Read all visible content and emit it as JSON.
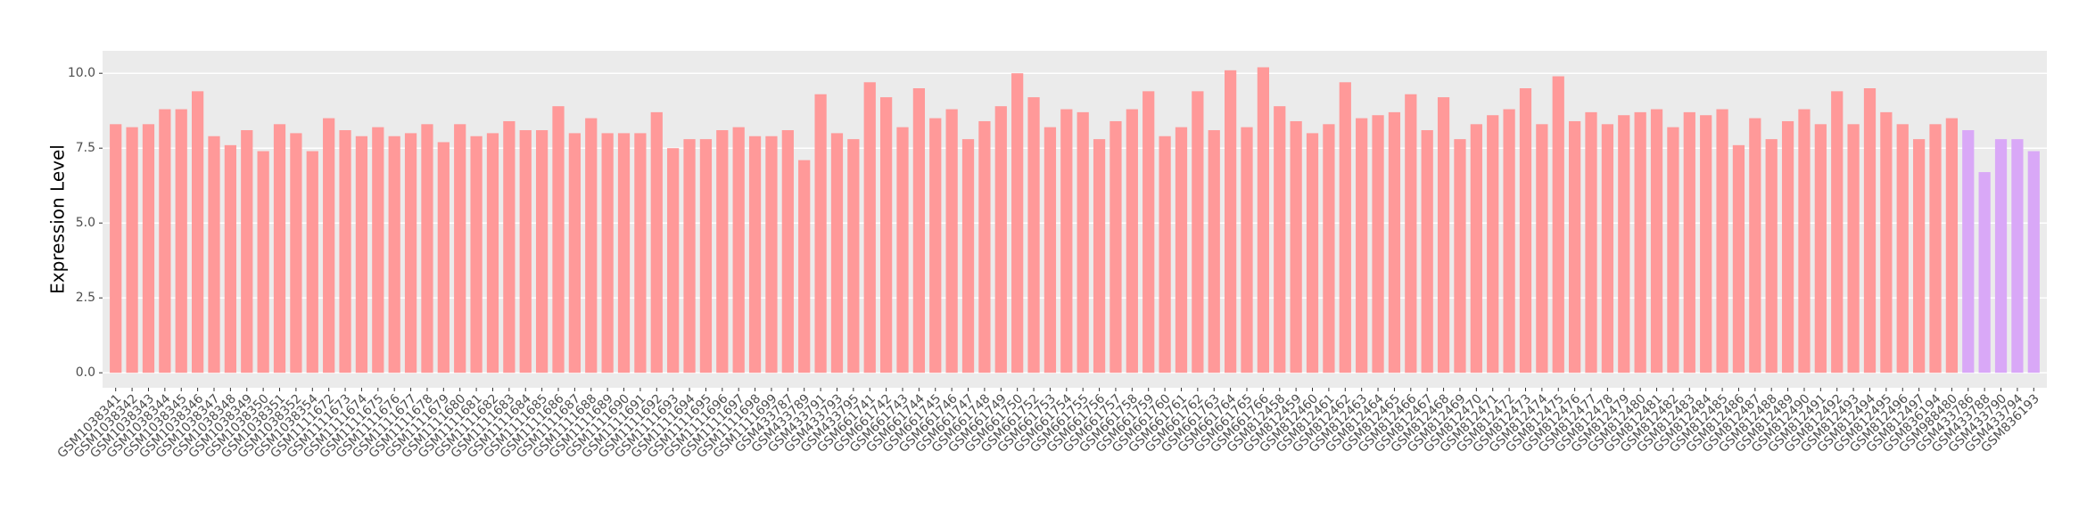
{
  "chart_data": {
    "type": "bar",
    "y_label": "Expression Level",
    "categories": [
      "GSM1038341",
      "GSM1038342",
      "GSM1038343",
      "GSM1038344",
      "GSM1038345",
      "GSM1038346",
      "GSM1038347",
      "GSM1038348",
      "GSM1038349",
      "GSM1038350",
      "GSM1038351",
      "GSM1038352",
      "GSM1038354",
      "GSM1111672",
      "GSM1111673",
      "GSM1111674",
      "GSM1111675",
      "GSM1111676",
      "GSM1111677",
      "GSM1111678",
      "GSM1111679",
      "GSM1111680",
      "GSM1111681",
      "GSM1111682",
      "GSM1111683",
      "GSM1111684",
      "GSM1111685",
      "GSM1111686",
      "GSM1111687",
      "GSM1111688",
      "GSM1111689",
      "GSM1111690",
      "GSM1111691",
      "GSM1111692",
      "GSM1111693",
      "GSM1111694",
      "GSM1111695",
      "GSM1111696",
      "GSM1111697",
      "GSM1111698",
      "GSM1111699",
      "GSM433787",
      "GSM433789",
      "GSM433791",
      "GSM433793",
      "GSM433795",
      "GSM661741",
      "GSM661742",
      "GSM661743",
      "GSM661744",
      "GSM661745",
      "GSM661746",
      "GSM661747",
      "GSM661748",
      "GSM661749",
      "GSM661750",
      "GSM661752",
      "GSM661753",
      "GSM661754",
      "GSM661755",
      "GSM661756",
      "GSM661757",
      "GSM661758",
      "GSM661759",
      "GSM661760",
      "GSM661761",
      "GSM661762",
      "GSM661763",
      "GSM661764",
      "GSM661765",
      "GSM661766",
      "GSM812458",
      "GSM812459",
      "GSM812460",
      "GSM812461",
      "GSM812462",
      "GSM812463",
      "GSM812464",
      "GSM812465",
      "GSM812466",
      "GSM812467",
      "GSM812468",
      "GSM812469",
      "GSM812470",
      "GSM812471",
      "GSM812472",
      "GSM812473",
      "GSM812474",
      "GSM812475",
      "GSM812476",
      "GSM812477",
      "GSM812478",
      "GSM812479",
      "GSM812480",
      "GSM812481",
      "GSM812482",
      "GSM812483",
      "GSM812484",
      "GSM812485",
      "GSM812486",
      "GSM812487",
      "GSM812488",
      "GSM812489",
      "GSM812490",
      "GSM812491",
      "GSM812492",
      "GSM812493",
      "GSM812494",
      "GSM812495",
      "GSM812496",
      "GSM812497",
      "GSM836194",
      "GSM988480",
      "GSM433786",
      "GSM433788",
      "GSM433790",
      "GSM433794",
      "GSM836193"
    ],
    "values": [
      8.3,
      8.2,
      8.3,
      8.8,
      8.8,
      9.4,
      7.9,
      7.6,
      8.1,
      7.4,
      8.3,
      8.0,
      7.4,
      8.5,
      8.1,
      7.9,
      8.2,
      7.9,
      8.0,
      8.3,
      7.7,
      8.3,
      7.9,
      8.0,
      8.4,
      8.1,
      8.1,
      8.9,
      8.0,
      8.5,
      8.0,
      8.0,
      8.0,
      8.7,
      7.5,
      7.8,
      7.8,
      8.1,
      8.2,
      7.9,
      7.9,
      8.1,
      7.1,
      9.3,
      8.0,
      7.8,
      9.7,
      9.2,
      8.2,
      9.5,
      8.5,
      8.8,
      7.8,
      8.4,
      8.9,
      10.0,
      9.2,
      8.2,
      8.8,
      8.7,
      7.8,
      8.4,
      8.8,
      9.4,
      7.9,
      8.2,
      9.4,
      8.1,
      10.1,
      8.2,
      10.2,
      8.9,
      8.4,
      8.0,
      8.3,
      9.7,
      8.5,
      8.6,
      8.7,
      9.3,
      8.1,
      9.2,
      7.8,
      8.3,
      8.6,
      8.8,
      9.5,
      8.3,
      9.9,
      8.4,
      8.7,
      8.3,
      8.6,
      8.7,
      8.8,
      8.2,
      8.7,
      8.6,
      8.8,
      7.6,
      8.5,
      7.8,
      8.4,
      8.8,
      8.3,
      9.4,
      8.3,
      9.5,
      8.7,
      8.3,
      7.8,
      8.3,
      8.5,
      8.1,
      6.7,
      7.8,
      7.8,
      7.4
    ],
    "colors": [
      "#ff9999",
      "#ff9999",
      "#ff9999",
      "#ff9999",
      "#ff9999",
      "#ff9999",
      "#ff9999",
      "#ff9999",
      "#ff9999",
      "#ff9999",
      "#ff9999",
      "#ff9999",
      "#ff9999",
      "#ff9999",
      "#ff9999",
      "#ff9999",
      "#ff9999",
      "#ff9999",
      "#ff9999",
      "#ff9999",
      "#ff9999",
      "#ff9999",
      "#ff9999",
      "#ff9999",
      "#ff9999",
      "#ff9999",
      "#ff9999",
      "#ff9999",
      "#ff9999",
      "#ff9999",
      "#ff9999",
      "#ff9999",
      "#ff9999",
      "#ff9999",
      "#ff9999",
      "#ff9999",
      "#ff9999",
      "#ff9999",
      "#ff9999",
      "#ff9999",
      "#ff9999",
      "#ff9999",
      "#ff9999",
      "#ff9999",
      "#ff9999",
      "#ff9999",
      "#ff9999",
      "#ff9999",
      "#ff9999",
      "#ff9999",
      "#ff9999",
      "#ff9999",
      "#ff9999",
      "#ff9999",
      "#ff9999",
      "#ff9999",
      "#ff9999",
      "#ff9999",
      "#ff9999",
      "#ff9999",
      "#ff9999",
      "#ff9999",
      "#ff9999",
      "#ff9999",
      "#ff9999",
      "#ff9999",
      "#ff9999",
      "#ff9999",
      "#ff9999",
      "#ff9999",
      "#ff9999",
      "#ff9999",
      "#ff9999",
      "#ff9999",
      "#ff9999",
      "#ff9999",
      "#ff9999",
      "#ff9999",
      "#ff9999",
      "#ff9999",
      "#ff9999",
      "#ff9999",
      "#ff9999",
      "#ff9999",
      "#ff9999",
      "#ff9999",
      "#ff9999",
      "#ff9999",
      "#ff9999",
      "#ff9999",
      "#ff9999",
      "#ff9999",
      "#ff9999",
      "#ff9999",
      "#ff9999",
      "#ff9999",
      "#ff9999",
      "#ff9999",
      "#ff9999",
      "#ff9999",
      "#ff9999",
      "#ff9999",
      "#ff9999",
      "#ff9999",
      "#ff9999",
      "#ff9999",
      "#ff9999",
      "#ff9999",
      "#ff9999",
      "#ff9999",
      "#ff9999",
      "#ff9999",
      "#ff9999",
      "#d9a8f7",
      "#d9a8f7",
      "#d9a8f7",
      "#d9a8f7",
      "#d9a8f7"
    ],
    "ylim": [
      -0.5,
      10.75
    ],
    "yticks": [
      {
        "value": 0,
        "label": "0.0"
      },
      {
        "value": 2.5,
        "label": "2.5"
      },
      {
        "value": 5,
        "label": "5.0"
      },
      {
        "value": 7.5,
        "label": "7.5"
      },
      {
        "value": 10,
        "label": "10.0"
      }
    ],
    "grid": true
  }
}
